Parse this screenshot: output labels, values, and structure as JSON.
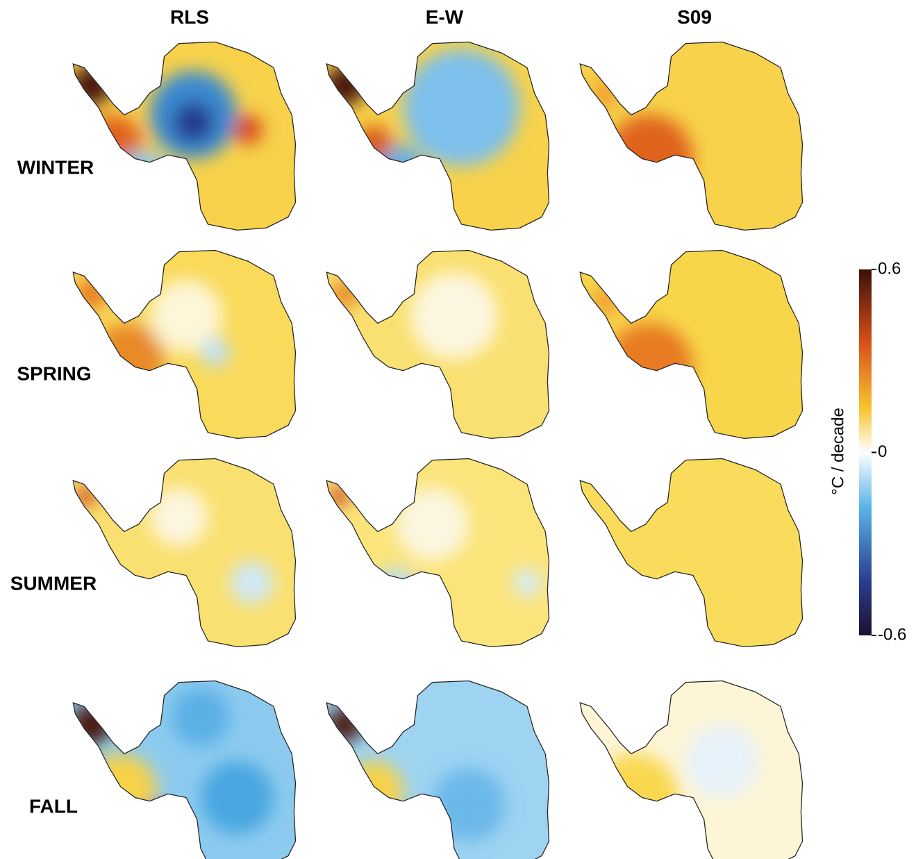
{
  "columns": [
    "RLS",
    "E-W",
    "S09"
  ],
  "rows": [
    "WINTER",
    "SPRING",
    "SUMMER",
    "FALL"
  ],
  "colorbar": {
    "label": "°C / decade",
    "range": [
      -0.6,
      0.6
    ],
    "ticks": [
      0.6,
      0,
      -0.6
    ]
  }
}
